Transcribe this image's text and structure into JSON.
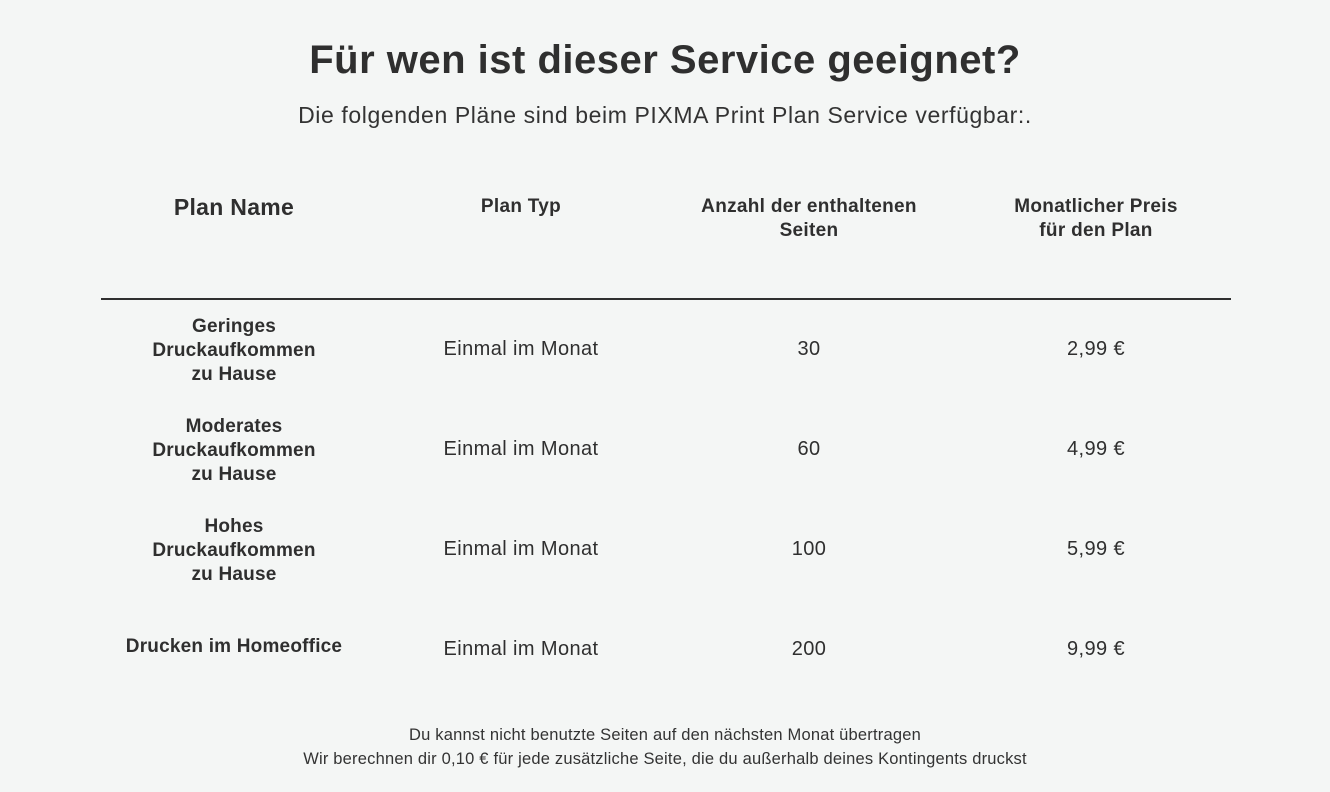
{
  "header": {
    "title": "Für wen ist dieser Service geeignet?",
    "subtitle": "Die folgenden Pläne sind beim PIXMA Print Plan Service verfügbar:."
  },
  "table": {
    "columns": [
      "Plan Name",
      "Plan Typ",
      "Anzahl der enthaltenen\nSeiten",
      "Monatlicher Preis\nfür den Plan"
    ],
    "rows": [
      {
        "name": "Geringes\nDruckaufkommen\nzu Hause",
        "type": "Einmal im Monat",
        "pages": "30",
        "price": "2,99 €"
      },
      {
        "name": "Moderates\nDruckaufkommen\nzu Hause",
        "type": "Einmal im Monat",
        "pages": "60",
        "price": "4,99 €"
      },
      {
        "name": "Hohes\nDruckaufkommen\nzu Hause",
        "type": "Einmal im Monat",
        "pages": "100",
        "price": "5,99 €"
      },
      {
        "name": "Drucken im Homeoffice",
        "type": "Einmal im Monat",
        "pages": "200",
        "price": "9,99 €"
      }
    ]
  },
  "footnotes": [
    "Du kannst nicht benutzte Seiten auf den nächsten Monat übertragen",
    "Wir berechnen dir 0,10 € für jede zusätzliche Seite, die du außerhalb deines Kontingents druckst"
  ]
}
